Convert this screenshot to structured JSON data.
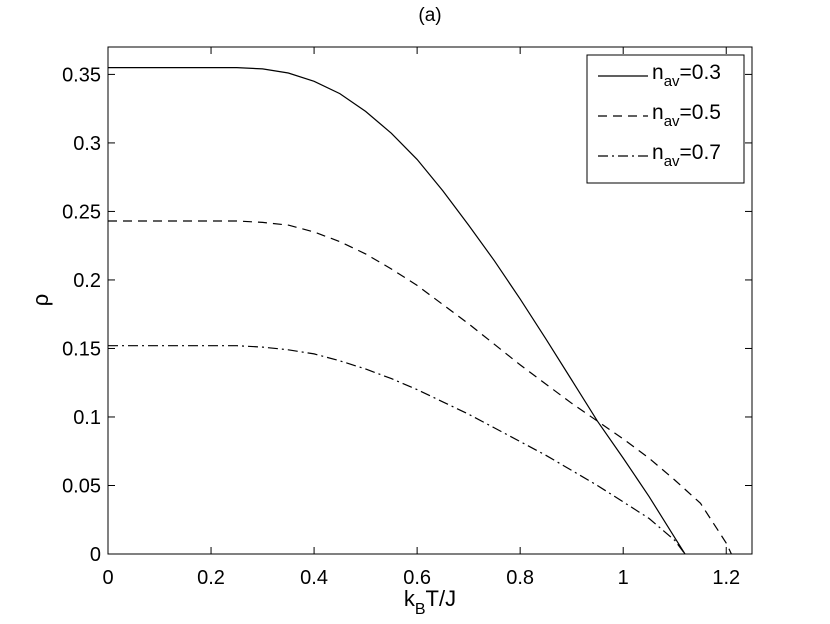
{
  "chart_data": {
    "type": "line",
    "title": "(a)",
    "xlabel": {
      "main": "k",
      "sub": "B",
      "rest": "T/J"
    },
    "ylabel": "ρ",
    "xlim": [
      0,
      1.25
    ],
    "ylim": [
      0,
      0.37
    ],
    "x_ticks": [
      0,
      0.2,
      0.4,
      0.6,
      0.8,
      1,
      1.2
    ],
    "x_tick_labels": [
      "0",
      "0.2",
      "0.4",
      "0.6",
      "0.8",
      "1",
      "1.2"
    ],
    "y_ticks": [
      0,
      0.05,
      0.1,
      0.15,
      0.2,
      0.25,
      0.3,
      0.35
    ],
    "y_tick_labels": [
      "0",
      "0.05",
      "0.1",
      "0.15",
      "0.2",
      "0.25",
      "0.3",
      "0.35"
    ],
    "grid": false,
    "legend_position": "top-right",
    "series": [
      {
        "name": {
          "main": "n",
          "sub": "av",
          "rest": "=0.3"
        },
        "style": "solid",
        "x": [
          0,
          0.1,
          0.2,
          0.25,
          0.3,
          0.35,
          0.4,
          0.45,
          0.5,
          0.55,
          0.6,
          0.65,
          0.7,
          0.75,
          0.8,
          0.85,
          0.9,
          0.95,
          1.0,
          1.05,
          1.1,
          1.12
        ],
        "y": [
          0.355,
          0.355,
          0.355,
          0.355,
          0.354,
          0.351,
          0.345,
          0.336,
          0.323,
          0.307,
          0.288,
          0.265,
          0.24,
          0.214,
          0.186,
          0.157,
          0.127,
          0.097,
          0.07,
          0.042,
          0.012,
          0
        ]
      },
      {
        "name": {
          "main": "n",
          "sub": "av",
          "rest": "=0.5"
        },
        "style": "dashed",
        "x": [
          0,
          0.1,
          0.2,
          0.25,
          0.3,
          0.35,
          0.4,
          0.45,
          0.5,
          0.55,
          0.6,
          0.65,
          0.7,
          0.75,
          0.8,
          0.85,
          0.9,
          0.95,
          1.0,
          1.05,
          1.1,
          1.15,
          1.2,
          1.21
        ],
        "y": [
          0.243,
          0.243,
          0.243,
          0.243,
          0.242,
          0.24,
          0.235,
          0.228,
          0.219,
          0.208,
          0.196,
          0.182,
          0.168,
          0.153,
          0.138,
          0.124,
          0.11,
          0.097,
          0.084,
          0.07,
          0.054,
          0.037,
          0.008,
          0
        ]
      },
      {
        "name": {
          "main": "n",
          "sub": "av",
          "rest": "=0.7"
        },
        "style": "dashdot",
        "x": [
          0,
          0.1,
          0.2,
          0.25,
          0.3,
          0.35,
          0.4,
          0.45,
          0.5,
          0.55,
          0.6,
          0.65,
          0.7,
          0.75,
          0.8,
          0.85,
          0.9,
          0.95,
          1.0,
          1.05,
          1.1,
          1.12
        ],
        "y": [
          0.152,
          0.152,
          0.152,
          0.152,
          0.151,
          0.149,
          0.146,
          0.141,
          0.135,
          0.128,
          0.12,
          0.111,
          0.102,
          0.092,
          0.082,
          0.072,
          0.061,
          0.05,
          0.038,
          0.026,
          0.01,
          0
        ]
      }
    ]
  }
}
